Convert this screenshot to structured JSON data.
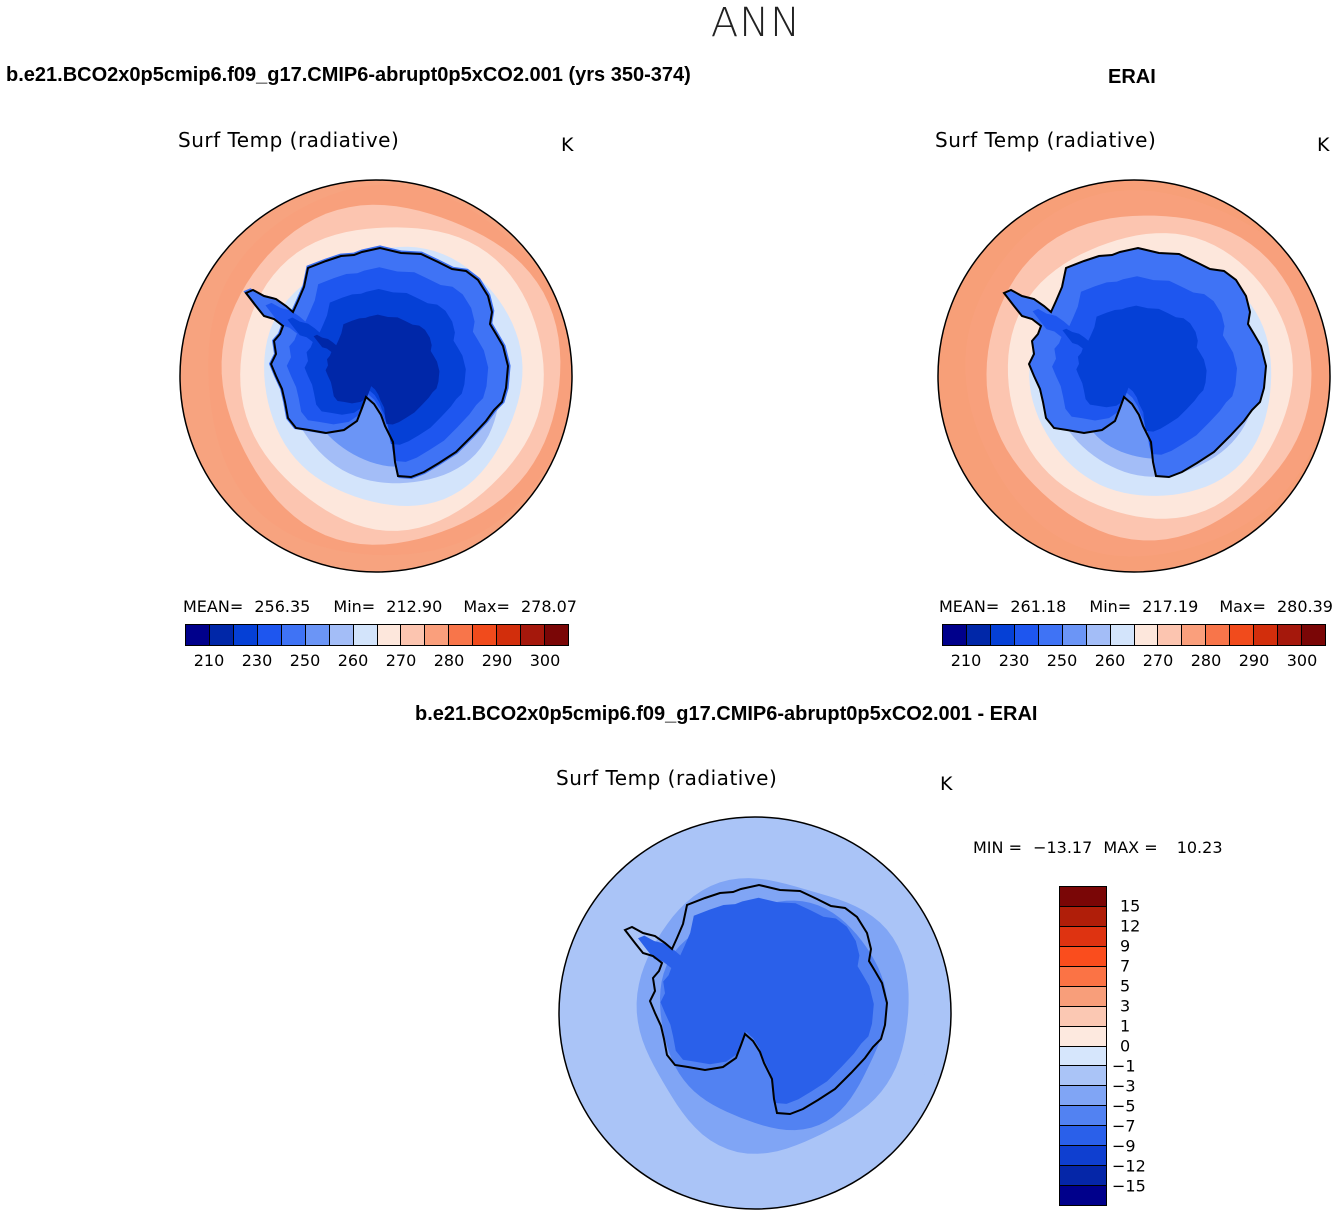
{
  "page": {
    "season": "ANN",
    "model_title": "b.e21.BCO2x0p5cmip6.f09_g17.CMIP6-abrupt0p5xCO2.001 (yrs 350-374)",
    "obs_title": "ERAI",
    "diff_title": "b.e21.BCO2x0p5cmip6.f09_g17.CMIP6-abrupt0p5xCO2.001 - ERAI"
  },
  "panels": {
    "model": {
      "variable": "Surf Temp (radiative)",
      "units": "K",
      "mean_label": "MEAN=",
      "mean": "256.35",
      "min_label": "Min=",
      "min": "212.90",
      "max_label": "Max=",
      "max": "278.07"
    },
    "obs": {
      "variable": "Surf Temp (radiative)",
      "units": "K",
      "mean_label": "MEAN=",
      "mean": "261.18",
      "min_label": "Min=",
      "min": "217.19",
      "max_label": "Max=",
      "max": "280.39"
    },
    "diff": {
      "variable": "Surf Temp (radiative)",
      "units": "K",
      "min_label": "MIN =",
      "min": "−13.17",
      "max_label": "MAX =",
      "max": "10.23"
    }
  },
  "colorbars": {
    "abs": {
      "ticks": [
        "210",
        "230",
        "250",
        "260",
        "270",
        "280",
        "290",
        "300"
      ],
      "tick_index": [
        1,
        3,
        5,
        7,
        9,
        11,
        13,
        15
      ],
      "colors": [
        "#00008b",
        "#0027a8",
        "#0540d6",
        "#1e56ef",
        "#3f73f5",
        "#6b95f6",
        "#a3bdf7",
        "#d3e4fb",
        "#fde7dc",
        "#fcc5b0",
        "#fa9f7c",
        "#f8754a",
        "#f14b1c",
        "#d22e0c",
        "#a5180c",
        "#7a0606"
      ]
    },
    "diff": {
      "ticks": [
        "15",
        "12",
        "9",
        "7",
        "5",
        "3",
        "1",
        "0",
        "−1",
        "−3",
        "−5",
        "−7",
        "−9",
        "−12",
        "−15"
      ],
      "colors": [
        "#7a0606",
        "#b01e09",
        "#de3311",
        "#fa4d1d",
        "#fb7345",
        "#f89e7a",
        "#fbc8b3",
        "#fde9df",
        "#d6e6fc",
        "#aac4f7",
        "#80a5f5",
        "#5282f2",
        "#2a60ea",
        "#0f3fd0",
        "#0526a8",
        "#00008b"
      ]
    }
  },
  "map_fields": {
    "model": {
      "levels_K": [
        275,
        272,
        268,
        264,
        258,
        252,
        244,
        236,
        228,
        220
      ],
      "colors": [
        "#f8a07c",
        "#fcc5b0",
        "#fde7dc",
        "#d3e4fb",
        "#a3bdf7",
        "#6b95f6",
        "#3f73f5",
        "#1e56ef",
        "#0540d6",
        "#0027a8"
      ]
    },
    "obs": {
      "levels_K": [
        276,
        272,
        268,
        264,
        258,
        252,
        245,
        238,
        230
      ],
      "colors": [
        "#f8a07c",
        "#fcc5b0",
        "#fde7dc",
        "#d3e4fb",
        "#a3bdf7",
        "#6b95f6",
        "#3f73f5",
        "#1e56ef",
        "#0540d6"
      ]
    },
    "diff": {
      "levels_K": [
        -3,
        -5,
        -7,
        -9
      ],
      "colors": [
        "#aac4f7",
        "#80a5f5",
        "#5282f2",
        "#2a60ea"
      ]
    }
  }
}
